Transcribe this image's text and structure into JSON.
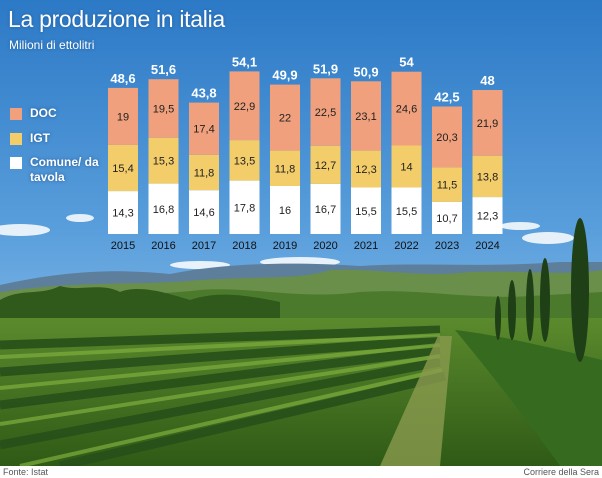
{
  "title": "La produzione in italia",
  "subtitle": "Milioni di ettolitri",
  "source": "Fonte: Istat",
  "credit": "Corriere della Sera",
  "colors": {
    "doc": "#f0a07c",
    "igt": "#f3cd6a",
    "comune": "#ffffff"
  },
  "chart_data": {
    "type": "bar",
    "stacked": true,
    "title": "La produzione in italia",
    "ylabel": "Milioni di ettolitri",
    "ylim": [
      0,
      60
    ],
    "legend_position": "left",
    "grid": false,
    "categories": [
      "2015",
      "2016",
      "2017",
      "2018",
      "2019",
      "2020",
      "2021",
      "2022",
      "2023",
      "2024"
    ],
    "totals": [
      "48,6",
      "51,6",
      "43,8",
      "54,1",
      "49,9",
      "51,9",
      "50,9",
      "54",
      "42,5",
      "48"
    ],
    "series": [
      {
        "name": "Comune/ da tavola",
        "key": "comune",
        "values": [
          14.3,
          16.8,
          14.6,
          17.8,
          16,
          16.7,
          15.5,
          15.5,
          10.7,
          12.3
        ],
        "labels": [
          "14,3",
          "16,8",
          "14,6",
          "17,8",
          "16",
          "16,7",
          "15,5",
          "15,5",
          "10,7",
          "12,3"
        ]
      },
      {
        "name": "IGT",
        "key": "igt",
        "values": [
          15.4,
          15.3,
          11.8,
          13.5,
          11.8,
          12.7,
          12.3,
          14,
          11.5,
          13.8
        ],
        "labels": [
          "15,4",
          "15,3",
          "11,8",
          "13,5",
          "11,8",
          "12,7",
          "12,3",
          "14",
          "11,5",
          "13,8"
        ]
      },
      {
        "name": "DOC",
        "key": "doc",
        "values": [
          19,
          19.5,
          17.4,
          22.9,
          22,
          22.5,
          23.1,
          24.6,
          20.3,
          21.9
        ],
        "labels": [
          "19",
          "19,5",
          "17,4",
          "22,9",
          "22",
          "22,5",
          "23,1",
          "24,6",
          "20,3",
          "21,9"
        ]
      }
    ]
  },
  "legend": [
    {
      "label": "DOC",
      "key": "doc"
    },
    {
      "label": "IGT",
      "key": "igt"
    },
    {
      "label": "Comune/ da tavola",
      "key": "comune"
    }
  ]
}
